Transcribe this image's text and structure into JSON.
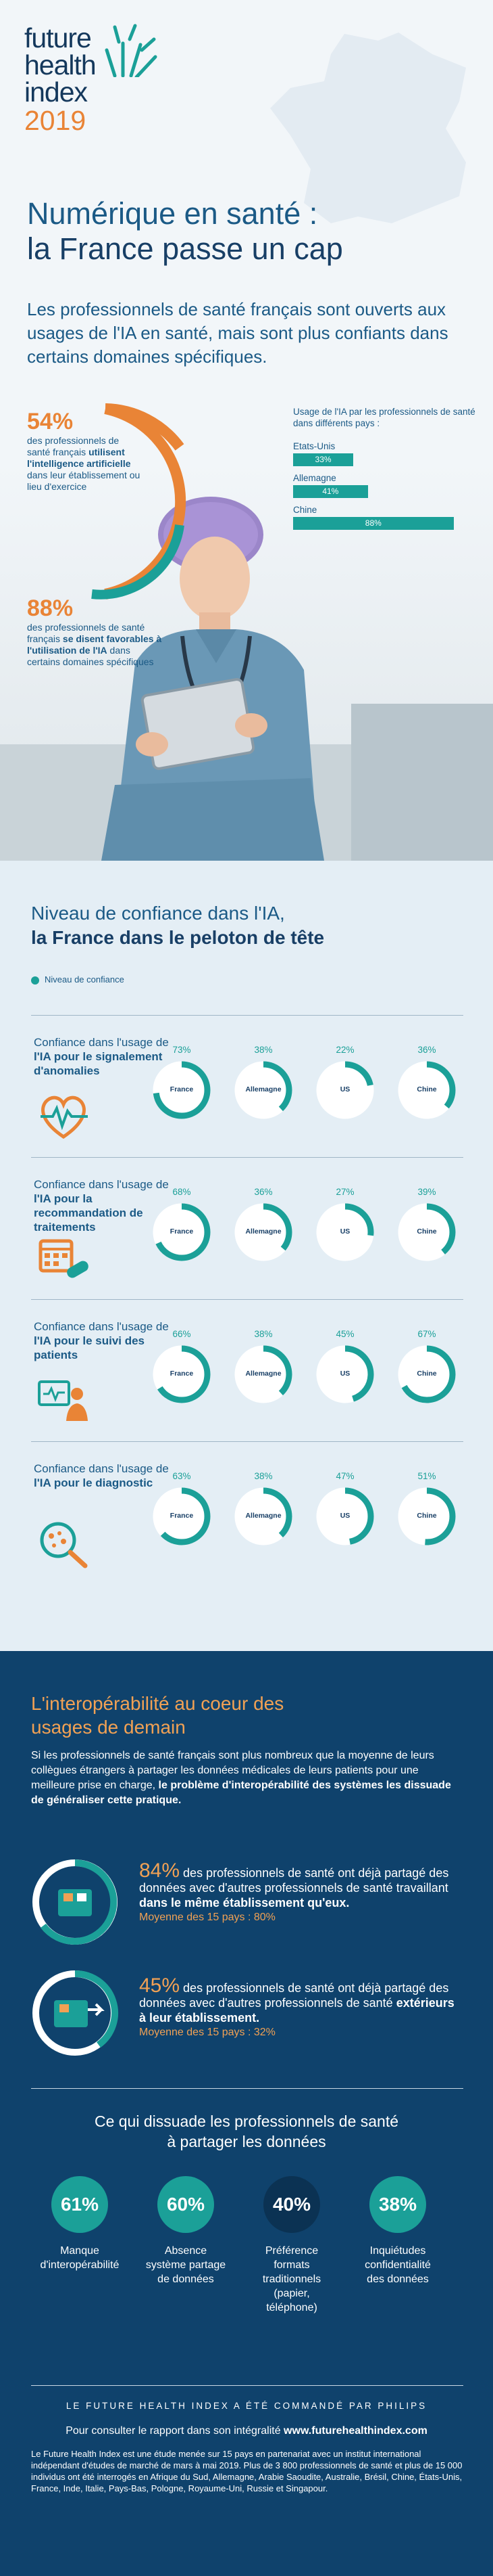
{
  "logo": {
    "line1": "future",
    "line2": "health",
    "line3": "index",
    "year": "2019"
  },
  "headline": {
    "line1": "Numérique en santé :",
    "line2": "la France passe un cap"
  },
  "intro": "Les professionnels de santé français sont ouverts aux usages de l'IA en santé, mais sont plus confiants dans certains domaines spécifiques.",
  "stat54": {
    "value": "54%",
    "pre": "des professionnels de santé français ",
    "bold": "utilisent l'intelligence artificielle",
    "post": " dans leur établissement ou lieu d'exercice"
  },
  "stat88": {
    "value": "88%",
    "pre": "des professionnels de santé français ",
    "bold": "se disent favorables à l'utilisation de l'IA",
    "post": " dans certains domaines spécifiques"
  },
  "usage_chart": {
    "title": "Usage de l'IA par les professionnels de santé dans différents pays :",
    "rows": [
      {
        "country": "Etats-Unis",
        "label": "33%",
        "value": 33
      },
      {
        "country": "Allemagne",
        "label": "41%",
        "value": 41
      },
      {
        "country": "Chine",
        "label": "88%",
        "value": 88
      }
    ]
  },
  "confidence": {
    "title1": "Niveau de confiance dans l'IA,",
    "title2": "la France dans le peloton de tête",
    "legend": "Niveau de confiance",
    "groups": [
      {
        "pre": "Confiance dans l'usage de ",
        "bold": "l'IA pour le signalement d'anomalies",
        "icon": "heart-monitor-icon",
        "items": [
          {
            "country": "France",
            "pct": "73%",
            "value": 73
          },
          {
            "country": "Allemagne",
            "pct": "38%",
            "value": 38
          },
          {
            "country": "US",
            "pct": "22%",
            "value": 22
          },
          {
            "country": "Chine",
            "pct": "36%",
            "value": 36
          }
        ]
      },
      {
        "pre": "Confiance dans l'usage de ",
        "bold": "l'IA pour la recommandation de traitements",
        "icon": "calendar-pill-icon",
        "items": [
          {
            "country": "France",
            "pct": "68%",
            "value": 68
          },
          {
            "country": "Allemagne",
            "pct": "36%",
            "value": 36
          },
          {
            "country": "US",
            "pct": "27%",
            "value": 27
          },
          {
            "country": "Chine",
            "pct": "39%",
            "value": 39
          }
        ]
      },
      {
        "pre": "Confiance dans l'usage de ",
        "bold": "l'IA pour le suivi des patients",
        "icon": "patient-monitor-icon",
        "items": [
          {
            "country": "France",
            "pct": "66%",
            "value": 66
          },
          {
            "country": "Allemagne",
            "pct": "38%",
            "value": 38
          },
          {
            "country": "US",
            "pct": "45%",
            "value": 45
          },
          {
            "country": "Chine",
            "pct": "67%",
            "value": 67
          }
        ]
      },
      {
        "pre": "Confiance dans l'usage de ",
        "bold": "l'IA pour le diagnostic",
        "icon": "magnifier-diagnostic-icon",
        "items": [
          {
            "country": "France",
            "pct": "63%",
            "value": 63
          },
          {
            "country": "Allemagne",
            "pct": "38%",
            "value": 38
          },
          {
            "country": "US",
            "pct": "47%",
            "value": 47
          },
          {
            "country": "Chine",
            "pct": "51%",
            "value": 51
          }
        ]
      }
    ]
  },
  "interop": {
    "title1": "L'interopérabilité au coeur des",
    "title2": "usages de demain",
    "body_pre": "Si les professionnels de santé français sont plus nombreux que la moyenne de leurs collègues étrangers à partager les données médicales de leurs patients pour une meilleure prise en charge, ",
    "body_bold": "le problème d'interopérabilité des systèmes les dissuade de généraliser cette pratique.",
    "stat84": {
      "value": "84%",
      "pre": " des professionnels de santé ont déjà partagé des données avec d'autres professionnels de santé travaillant ",
      "bold": "dans le même établissement qu'eux.",
      "avg": "Moyenne des 15 pays : 80%"
    },
    "stat45": {
      "value": "45%",
      "pre": " des professionnels de santé ont déjà partagé des données avec d'autres professionnels de santé ",
      "bold": "extérieurs à leur établissement.",
      "avg": "Moyenne des 15 pays : 32%"
    }
  },
  "dissuade": {
    "title1": "Ce qui dissuade les professionnels de santé",
    "title2": "à partager les données",
    "items": [
      {
        "pct": "61%",
        "label": "Manque d'interopérabilité"
      },
      {
        "pct": "60%",
        "label": "Absence système partage de données"
      },
      {
        "pct": "40%",
        "label": "Préférence formats traditionnels (papier, téléphone)"
      },
      {
        "pct": "38%",
        "label": "Inquiétudes confidentialité des données"
      }
    ]
  },
  "footer": {
    "commissioned": "LE FUTURE HEALTH INDEX A ÉTÉ COMMANDÉ PAR PHILIPS",
    "consult_pre": "Pour consulter le rapport dans son intégralité ",
    "consult_link": "www.futurehealthindex.com",
    "para": "Le Future Health Index est une étude menée sur 15 pays en partenariat avec un institut international indépendant d'études de marché de mars à mai 2019. Plus de 3 800 professionnels de santé et plus de 15 000 individus ont été interrogés en Afrique du Sud, Allemagne, Arabie Saoudite, Australie, Brésil, Chine, États-Unis, France, Inde, Italie, Pays-Bas, Pologne, Royaume-Uni, Russie et Singapour."
  },
  "colors": {
    "teal": "#1ba098",
    "orange": "#e98436",
    "navy": "#0f426c",
    "blue": "#1b5a86"
  }
}
